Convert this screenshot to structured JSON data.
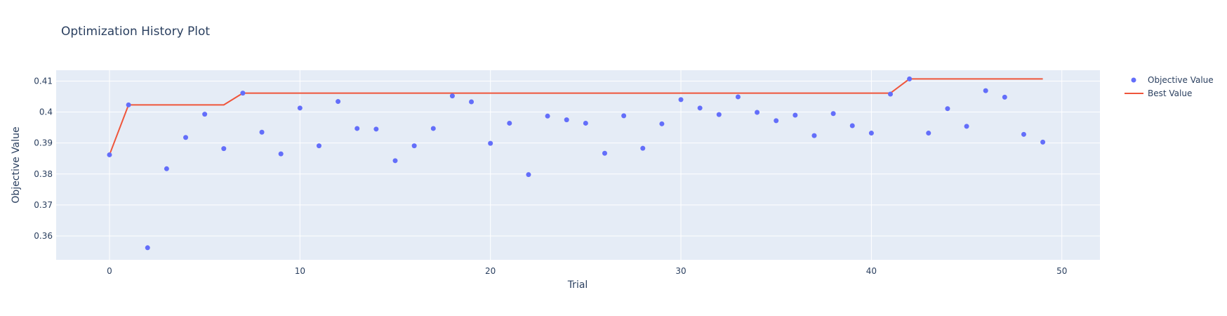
{
  "chart_data": {
    "type": "scatter",
    "title": "Optimization History Plot",
    "xlabel": "Trial",
    "ylabel": "Objective Value",
    "xlim": [
      -2.8,
      52
    ],
    "ylim": [
      0.3523,
      0.4135
    ],
    "x_ticks": [
      0,
      10,
      20,
      30,
      40,
      50
    ],
    "y_ticks": [
      0.36,
      0.37,
      0.38,
      0.39,
      0.4,
      0.41
    ],
    "y_tick_labels": [
      "0.36",
      "0.37",
      "0.38",
      "0.39",
      "0.4",
      "0.41"
    ],
    "grid": true,
    "legend_position": "top-right",
    "colors": {
      "objective": "#636efa",
      "best": "#ef553b",
      "plot_bg": "#e5ecf6",
      "grid": "#ffffff",
      "text": "#2a3f5f"
    },
    "series": [
      {
        "name": "Objective Value",
        "mode": "markers",
        "x": [
          0,
          1,
          2,
          3,
          4,
          5,
          6,
          7,
          8,
          9,
          10,
          11,
          12,
          13,
          14,
          15,
          16,
          17,
          18,
          19,
          20,
          21,
          22,
          23,
          24,
          25,
          26,
          27,
          28,
          29,
          30,
          31,
          32,
          33,
          34,
          35,
          36,
          37,
          38,
          39,
          40,
          41,
          42,
          43,
          44,
          45,
          46,
          47,
          48,
          49
        ],
        "y": [
          0.3862,
          0.4023,
          0.3562,
          0.3817,
          0.3918,
          0.3993,
          0.3882,
          0.4061,
          0.3935,
          0.3865,
          0.4013,
          0.3891,
          0.4034,
          0.3947,
          0.3945,
          0.3843,
          0.3891,
          0.3947,
          0.4052,
          0.4033,
          0.3899,
          0.3964,
          0.3798,
          0.3987,
          0.3975,
          0.3964,
          0.3867,
          0.3988,
          0.3883,
          0.3962,
          0.404,
          0.4013,
          0.3992,
          0.4049,
          0.3999,
          0.3972,
          0.399,
          0.3924,
          0.3995,
          0.3956,
          0.3932,
          0.4058,
          0.4107,
          0.3932,
          0.4011,
          0.3954,
          0.4069,
          0.4048,
          0.3928,
          0.3903
        ]
      },
      {
        "name": "Best Value",
        "mode": "line",
        "x": [
          0,
          1,
          2,
          3,
          4,
          5,
          6,
          7,
          8,
          9,
          10,
          11,
          12,
          13,
          14,
          15,
          16,
          17,
          18,
          19,
          20,
          21,
          22,
          23,
          24,
          25,
          26,
          27,
          28,
          29,
          30,
          31,
          32,
          33,
          34,
          35,
          36,
          37,
          38,
          39,
          40,
          41,
          42,
          43,
          44,
          45,
          46,
          47,
          48,
          49
        ],
        "y": [
          0.3862,
          0.4023,
          0.4023,
          0.4023,
          0.4023,
          0.4023,
          0.4023,
          0.4061,
          0.4061,
          0.4061,
          0.4061,
          0.4061,
          0.4061,
          0.4061,
          0.4061,
          0.4061,
          0.4061,
          0.4061,
          0.4061,
          0.4061,
          0.4061,
          0.4061,
          0.4061,
          0.4061,
          0.4061,
          0.4061,
          0.4061,
          0.4061,
          0.4061,
          0.4061,
          0.4061,
          0.4061,
          0.4061,
          0.4061,
          0.4061,
          0.4061,
          0.4061,
          0.4061,
          0.4061,
          0.4061,
          0.4061,
          0.4061,
          0.4107,
          0.4107,
          0.4107,
          0.4107,
          0.4107,
          0.4107,
          0.4107,
          0.4107
        ]
      }
    ]
  }
}
